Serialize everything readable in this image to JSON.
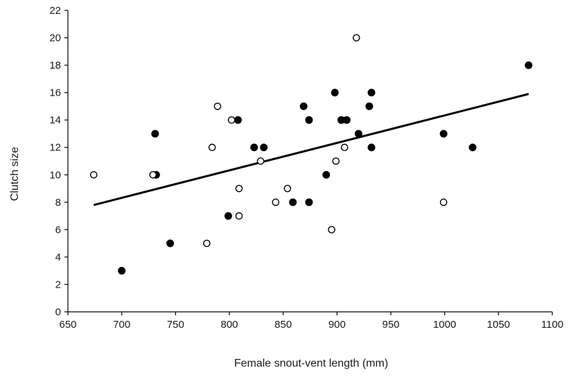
{
  "chart_data": {
    "type": "scatter",
    "title": "",
    "xlabel": "Female snout-vent length (mm)",
    "ylabel": "Clutch size",
    "xlim": [
      650,
      1100
    ],
    "ylim": [
      0,
      22
    ],
    "xticks": [
      650,
      700,
      750,
      800,
      850,
      900,
      950,
      1000,
      1050,
      1100
    ],
    "yticks": [
      0,
      2,
      4,
      6,
      8,
      10,
      12,
      14,
      16,
      18,
      20,
      22
    ],
    "grid": false,
    "legend": "none",
    "series": [
      {
        "marker": "filled-circle",
        "color": "#000000",
        "points": [
          {
            "x": 700,
            "y": 3
          },
          {
            "x": 731,
            "y": 13
          },
          {
            "x": 732,
            "y": 10
          },
          {
            "x": 745,
            "y": 5
          },
          {
            "x": 799,
            "y": 7
          },
          {
            "x": 808,
            "y": 14
          },
          {
            "x": 823,
            "y": 12
          },
          {
            "x": 832,
            "y": 12
          },
          {
            "x": 859,
            "y": 8
          },
          {
            "x": 869,
            "y": 15
          },
          {
            "x": 874,
            "y": 14
          },
          {
            "x": 874,
            "y": 8
          },
          {
            "x": 890,
            "y": 10
          },
          {
            "x": 898,
            "y": 16
          },
          {
            "x": 904,
            "y": 14
          },
          {
            "x": 909,
            "y": 14
          },
          {
            "x": 920,
            "y": 13
          },
          {
            "x": 930,
            "y": 15
          },
          {
            "x": 932,
            "y": 16
          },
          {
            "x": 932,
            "y": 12
          },
          {
            "x": 999,
            "y": 13
          },
          {
            "x": 1026,
            "y": 12
          },
          {
            "x": 1078,
            "y": 18
          }
        ]
      },
      {
        "marker": "open-circle",
        "color": "#000000",
        "points": [
          {
            "x": 674,
            "y": 10
          },
          {
            "x": 729,
            "y": 10
          },
          {
            "x": 779,
            "y": 5
          },
          {
            "x": 784,
            "y": 12
          },
          {
            "x": 789,
            "y": 15
          },
          {
            "x": 802,
            "y": 14
          },
          {
            "x": 809,
            "y": 9
          },
          {
            "x": 809,
            "y": 7
          },
          {
            "x": 829,
            "y": 11
          },
          {
            "x": 843,
            "y": 8
          },
          {
            "x": 854,
            "y": 9
          },
          {
            "x": 895,
            "y": 6
          },
          {
            "x": 899,
            "y": 11
          },
          {
            "x": 907,
            "y": 12
          },
          {
            "x": 918,
            "y": 20
          },
          {
            "x": 999,
            "y": 8
          }
        ]
      }
    ],
    "trendline": {
      "x": [
        674,
        1078
      ],
      "y": [
        7.8,
        15.9
      ]
    }
  }
}
